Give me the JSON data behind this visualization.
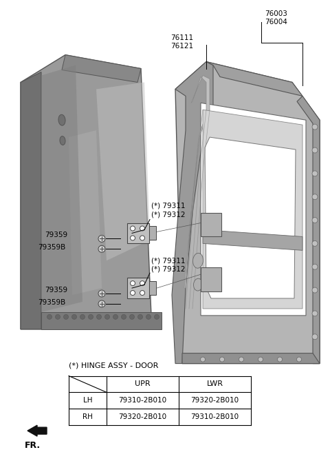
{
  "bg_color": "#ffffff",
  "line_color": "#000000",
  "text_color": "#000000",
  "gray_dark": "#8a8a8a",
  "gray_mid": "#a8a8a8",
  "gray_light": "#c8c8c8",
  "gray_lighter": "#d8d8d8",
  "table_title": "(*) HINGE ASSY - DOOR",
  "table_rows": [
    [
      "LH",
      "79310-2B010",
      "79320-2B010"
    ],
    [
      "RH",
      "79320-2B010",
      "79310-2B010"
    ]
  ],
  "labels": {
    "76003_76004": "76003\n76004",
    "76111_76121": "76111\n76121",
    "upr_hinge": "(*) 79311\n(*) 79312",
    "lwr_hinge": "(*) 79311\n(*) 79312",
    "79359_upr": "79359",
    "79359B_upr": "79359B",
    "79359_lwr": "79359",
    "79359B_lwr": "79359B"
  }
}
